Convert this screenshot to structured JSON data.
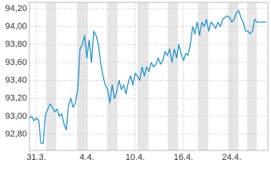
{
  "chart_data": {
    "type": "line",
    "categories": [
      null,
      null,
      null,
      "31.3.",
      null,
      null,
      null,
      null,
      null,
      null,
      null,
      null,
      null,
      null,
      null,
      null,
      null,
      null,
      null,
      null,
      null,
      null,
      null,
      null,
      null,
      "4.4.",
      null,
      null,
      null,
      null,
      null,
      null,
      null,
      null,
      null,
      null,
      null,
      null,
      null,
      null,
      null,
      null,
      null,
      null,
      null,
      null,
      "10.4.",
      null,
      null,
      null,
      null,
      null,
      null,
      null,
      null,
      null,
      null,
      null,
      null,
      null,
      null,
      null,
      null,
      null,
      null,
      null,
      null,
      "16.4.",
      null,
      null,
      null,
      null,
      null,
      null,
      null,
      null,
      null,
      null,
      null,
      null,
      null,
      null,
      null,
      null,
      null,
      null,
      null,
      null,
      "24.4.",
      null,
      null,
      null,
      null,
      null,
      null,
      null,
      null,
      null,
      null,
      null,
      null,
      null,
      null,
      null
    ],
    "values": [
      92.98,
      93.0,
      92.95,
      92.98,
      92.96,
      92.7,
      92.7,
      93.02,
      93.08,
      93.14,
      93.1,
      93.05,
      93.08,
      93.0,
      93.03,
      92.92,
      92.85,
      93.12,
      93.2,
      93.1,
      93.15,
      93.3,
      93.75,
      93.8,
      93.9,
      93.65,
      93.85,
      93.6,
      93.95,
      93.9,
      93.8,
      93.6,
      93.45,
      93.35,
      93.3,
      93.15,
      93.35,
      93.2,
      93.28,
      93.4,
      93.3,
      93.35,
      93.25,
      93.38,
      93.45,
      93.35,
      93.48,
      93.45,
      93.4,
      93.55,
      93.45,
      93.55,
      93.5,
      93.6,
      93.55,
      93.58,
      93.65,
      93.58,
      93.62,
      93.72,
      93.68,
      93.75,
      93.6,
      93.75,
      93.65,
      93.8,
      93.7,
      93.62,
      93.7,
      93.68,
      93.8,
      94.0,
      93.92,
      94.05,
      93.9,
      94.05,
      94.0,
      94.08,
      93.95,
      94.05,
      94.02,
      93.98,
      94.05,
      94.0,
      94.08,
      94.1,
      94.12,
      94.1,
      94.05,
      94.08,
      94.15,
      94.18,
      94.1,
      94.05,
      93.95,
      93.95,
      93.92,
      93.95,
      94.08,
      94.05,
      94.05,
      94.05,
      94.05,
      94.05
    ],
    "color": "#1a8dc8",
    "ylim": [
      92.62,
      94.27
    ],
    "yticks": [
      {
        "value": 92.8,
        "label": "92,80"
      },
      {
        "value": 93.0,
        "label": "93,00"
      },
      {
        "value": 93.2,
        "label": "93,20"
      },
      {
        "value": 93.4,
        "label": "93,40"
      },
      {
        "value": 93.6,
        "label": "93,60"
      },
      {
        "value": 93.8,
        "label": "93,80"
      },
      {
        "value": 94.0,
        "label": "94,00"
      },
      {
        "value": 94.2,
        "label": "94,20"
      }
    ],
    "grid": true
  }
}
